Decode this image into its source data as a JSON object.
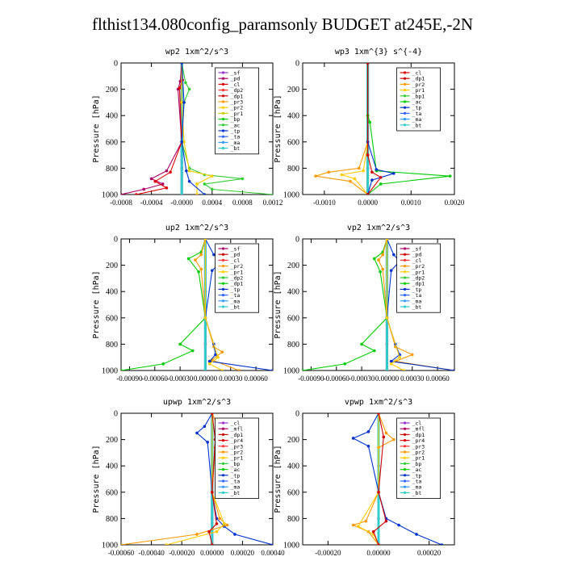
{
  "title": "flthist134.080config_paramsonly  BUDGET at245E,-2N",
  "chart_data": [
    {
      "type": "line",
      "title": "wp2   1xm^2/s^3",
      "ylabel": "Pressure [hPa]",
      "ylim": [
        1000,
        0
      ],
      "yticks": [
        0,
        200,
        400,
        600,
        800,
        1000
      ],
      "xlim": [
        -0.0008,
        0.0012
      ],
      "xticks": [
        -0.0008,
        -0.0004,
        0.0,
        0.0004,
        0.0008,
        0.0012
      ],
      "xticklabels": [
        "-0.0008",
        "-0.0004",
        "-0.0000",
        "0.0004",
        "0.0008",
        "0.0012"
      ],
      "legend": [
        "_sf",
        "_pd",
        "_cl",
        "_dp2",
        "_dp1",
        "_pr3",
        "_pr2",
        "_pr1",
        "_bp",
        "_ac",
        "_tp",
        "_ta",
        "_ma",
        "_bt"
      ],
      "colors": [
        "#9933cc",
        "#aa0066",
        "#dd0000",
        "#ff3333",
        "#cc0000",
        "#ff9900",
        "#ffcc00",
        "#cccc00",
        "#00cc00",
        "#33cc33",
        "#0033cc",
        "#3366ff",
        "#3399ff",
        "#33cccc"
      ],
      "series": [
        {
          "name": "_sf",
          "x": [
            0,
            0,
            0,
            0
          ],
          "y": [
            0,
            400,
            800,
            1000
          ]
        },
        {
          "name": "_bt",
          "x": [
            0,
            0,
            0
          ],
          "y": [
            0,
            500,
            1000
          ]
        },
        {
          "name": "_pd",
          "x": [
            0,
            -2e-05,
            -5e-05,
            0,
            -0.0002,
            -0.0004,
            -0.00025,
            -0.0005,
            -0.0008
          ],
          "y": [
            0,
            140,
            200,
            600,
            820,
            880,
            920,
            960,
            1000
          ]
        },
        {
          "name": "_cl",
          "x": [
            0,
            1e-05,
            -3e-05,
            0,
            -0.00015,
            -0.00035,
            -0.0002,
            -0.0006
          ],
          "y": [
            0,
            130,
            190,
            600,
            830,
            900,
            950,
            1000
          ]
        },
        {
          "name": "_ac",
          "x": [
            0,
            5e-05,
            0.0001,
            3e-05,
            0,
            0.0001,
            0.0003,
            0.0008,
            0.0003,
            0.0004,
            0.0012
          ],
          "y": [
            0,
            150,
            200,
            300,
            600,
            800,
            850,
            880,
            920,
            960,
            1000
          ]
        },
        {
          "name": "_pr2",
          "x": [
            0,
            0,
            3e-05,
            0.0001,
            0.0004,
            0.0002,
            0.0002
          ],
          "y": [
            0,
            300,
            600,
            820,
            860,
            920,
            1000
          ]
        },
        {
          "name": "_tp",
          "x": [
            0,
            3e-05,
            0,
            6e-05,
            0.0001,
            0.0003
          ],
          "y": [
            0,
            300,
            600,
            820,
            900,
            1000
          ]
        }
      ]
    },
    {
      "type": "line",
      "title": "wp3   1xm^{3} s^{-4}",
      "ylabel": "Pressure [hPa]",
      "ylim": [
        1000,
        0
      ],
      "yticks": [
        0,
        200,
        400,
        600,
        800,
        1000
      ],
      "xlim": [
        -0.0015,
        0.002
      ],
      "xticks": [
        -0.001,
        0.0,
        0.001,
        0.002
      ],
      "xticklabels": [
        "-0.0010",
        "0.0000",
        "0.0010",
        "0.0020"
      ],
      "legend": [
        "_cl",
        "_dp1",
        "_pr2",
        "_pr1",
        "_bp1",
        "_ac",
        "_tp",
        "_ta",
        "_ma",
        "_bt"
      ],
      "colors": [
        "#dd0000",
        "#cc0000",
        "#ff9900",
        "#ffcc00",
        "#33cc33",
        "#00cc00",
        "#0033cc",
        "#3366ff",
        "#3399ff",
        "#33cccc"
      ],
      "series": [
        {
          "name": "_cl",
          "x": [
            0,
            0,
            0,
            0
          ],
          "y": [
            0,
            400,
            800,
            1000
          ]
        },
        {
          "name": "_bt",
          "x": [
            0,
            0,
            0
          ],
          "y": [
            0,
            500,
            1000
          ]
        },
        {
          "name": "_pr2",
          "x": [
            0,
            0,
            -0.0002,
            -0.0009,
            -0.0012,
            -0.0004,
            0
          ],
          "y": [
            0,
            600,
            800,
            830,
            860,
            900,
            1000
          ]
        },
        {
          "name": "_pr1",
          "x": [
            0,
            0,
            -0.0001,
            -0.0006,
            -0.0003,
            0
          ],
          "y": [
            0,
            600,
            820,
            850,
            880,
            1000
          ]
        },
        {
          "name": "_ac",
          "x": [
            0,
            0,
            5e-05,
            0.0002,
            0.0019,
            0.0003,
            0
          ],
          "y": [
            0,
            400,
            450,
            820,
            860,
            920,
            1000
          ]
        },
        {
          "name": "_tp",
          "x": [
            0,
            0,
            0.0002,
            0.0006,
            0.0001,
            0
          ],
          "y": [
            0,
            600,
            810,
            840,
            890,
            1000
          ]
        },
        {
          "name": "_dp1",
          "x": [
            0,
            0,
            0.0001,
            0.0003,
            0
          ],
          "y": [
            0,
            700,
            830,
            870,
            1000
          ]
        }
      ]
    },
    {
      "type": "line",
      "title": "up2   1xm^2/s^3",
      "ylabel": "Pressure [hPa]",
      "ylim": [
        1000,
        0
      ],
      "yticks": [
        0,
        200,
        400,
        600,
        800,
        1000
      ],
      "xlim": [
        -0.001,
        0.0008
      ],
      "xticks": [
        -0.0009,
        -0.0006,
        -0.0003,
        0.0,
        0.0003,
        0.0006
      ],
      "xticklabels": [
        "-0.00090",
        "-0.00060",
        "-0.00030",
        "0.00000",
        "0.00030",
        "0.00060"
      ],
      "legend": [
        "_sf",
        "_pd",
        "_cl",
        "_pr2",
        "_pr1",
        "_dp2",
        "_dp1",
        "_tp",
        "_ta",
        "_ma",
        "_bt"
      ],
      "colors": [
        "#aa0066",
        "#cc0000",
        "#ff3333",
        "#ff9900",
        "#ffcc00",
        "#33cc33",
        "#00cc00",
        "#0033cc",
        "#3366ff",
        "#3399ff",
        "#33cccc"
      ],
      "series": [
        {
          "name": "_sf",
          "x": [
            0,
            0,
            0,
            0
          ],
          "y": [
            0,
            400,
            800,
            1000
          ]
        },
        {
          "name": "_bt",
          "x": [
            0,
            0,
            0
          ],
          "y": [
            0,
            500,
            1000
          ]
        },
        {
          "name": "_dp1",
          "x": [
            0,
            -5e-05,
            -0.0002,
            -8e-05,
            0,
            -0.0003,
            -0.00015,
            -0.0005,
            -0.001
          ],
          "y": [
            0,
            100,
            150,
            250,
            600,
            800,
            850,
            950,
            1000
          ]
        },
        {
          "name": "_pr2",
          "x": [
            0,
            -5e-05,
            -0.00012,
            -5e-05,
            0,
            0.0001,
            0.0002,
            8e-05,
            0.0004
          ],
          "y": [
            0,
            120,
            160,
            230,
            600,
            820,
            860,
            920,
            1000
          ]
        },
        {
          "name": "_tp",
          "x": [
            0,
            0.0001,
            0.0002,
            8e-05,
            0,
            0.0001,
            0.00012,
            5e-05,
            0.0008
          ],
          "y": [
            0,
            120,
            170,
            240,
            600,
            800,
            880,
            930,
            1000
          ]
        },
        {
          "name": "_pr1",
          "x": [
            0,
            0,
            0.00015,
            5e-05,
            0.0002
          ],
          "y": [
            0,
            600,
            900,
            950,
            1000
          ]
        }
      ]
    },
    {
      "type": "line",
      "title": "vp2   1xm^2/s^3",
      "ylabel": "Pressure [hPa]",
      "ylim": [
        1000,
        0
      ],
      "yticks": [
        0,
        200,
        400,
        600,
        800,
        1000
      ],
      "xlim": [
        -0.001,
        0.0008
      ],
      "xticks": [
        -0.0009,
        -0.0006,
        -0.0003,
        0.0,
        0.0003,
        0.0006
      ],
      "xticklabels": [
        "-0.00090",
        "-0.00060",
        "-0.00030",
        "0.00000",
        "0.00030",
        "0.00060"
      ],
      "legend": [
        "_sf",
        "_pd",
        "_cl",
        "_pr2",
        "_pr1",
        "_dp2",
        "_dp1",
        "_tp",
        "_ta",
        "_ma",
        "_bt"
      ],
      "colors": [
        "#aa0066",
        "#cc0000",
        "#ff3333",
        "#ff9900",
        "#ffcc00",
        "#33cc33",
        "#00cc00",
        "#0033cc",
        "#3366ff",
        "#3399ff",
        "#33cccc"
      ],
      "series": [
        {
          "name": "_sf",
          "x": [
            0,
            0,
            0,
            0
          ],
          "y": [
            0,
            400,
            800,
            1000
          ]
        },
        {
          "name": "_bt",
          "x": [
            0,
            0,
            0
          ],
          "y": [
            0,
            500,
            1000
          ]
        },
        {
          "name": "_dp1",
          "x": [
            0,
            -5e-05,
            -0.00015,
            -8e-05,
            0,
            -0.0003,
            -0.00015,
            -0.0005,
            -0.001
          ],
          "y": [
            0,
            100,
            150,
            250,
            600,
            800,
            850,
            950,
            1000
          ]
        },
        {
          "name": "_pr2",
          "x": [
            0,
            -5e-05,
            -0.0001,
            -5e-05,
            0,
            0.0001,
            0.0003,
            0.0001,
            0.0008
          ],
          "y": [
            0,
            120,
            160,
            230,
            600,
            820,
            880,
            930,
            1000
          ]
        },
        {
          "name": "_tp",
          "x": [
            0,
            8e-05,
            0.00015,
            5e-05,
            0,
            0.0001,
            0.00015,
            5e-05,
            0.0008
          ],
          "y": [
            0,
            120,
            170,
            240,
            600,
            800,
            880,
            930,
            1000
          ]
        },
        {
          "name": "_pr1",
          "x": [
            0,
            0,
            0.00015,
            5e-05,
            0.0002
          ],
          "y": [
            0,
            600,
            900,
            950,
            1000
          ]
        }
      ]
    },
    {
      "type": "line",
      "title": "upwp   1xm^2/s^3",
      "ylabel": "Pressure [hPa]",
      "ylim": [
        1000,
        0
      ],
      "yticks": [
        0,
        200,
        400,
        600,
        800,
        1000
      ],
      "xlim": [
        -0.0006,
        0.0004
      ],
      "xticks": [
        -0.0006,
        -0.0004,
        -0.0002,
        0.0,
        0.0002,
        0.0004
      ],
      "xticklabels": [
        "-0.00060",
        "-0.00040",
        "-0.00020",
        "0.00000",
        "0.00020",
        "0.00040"
      ],
      "legend": [
        "_cl",
        "_mfl",
        "_dp1",
        "_pr4",
        "_pr3",
        "_pr2",
        "_pr1",
        "_bp",
        "_ac",
        "_tp",
        "_ta",
        "_ma",
        "_bt"
      ],
      "colors": [
        "#9933cc",
        "#aa0066",
        "#cc0000",
        "#dd0000",
        "#ff3333",
        "#ff9900",
        "#ffcc00",
        "#33cc33",
        "#00cc00",
        "#0033cc",
        "#3366ff",
        "#3399ff",
        "#33cccc"
      ],
      "series": [
        {
          "name": "_cl",
          "x": [
            0,
            0,
            0,
            0
          ],
          "y": [
            0,
            400,
            800,
            1000
          ]
        },
        {
          "name": "_bt",
          "x": [
            0,
            0,
            0
          ],
          "y": [
            0,
            500,
            1000
          ]
        },
        {
          "name": "_tp",
          "x": [
            0,
            -5e-05,
            -0.0001,
            -3e-05,
            0,
            3e-05,
            8e-05,
            0.00015,
            0.0004
          ],
          "y": [
            0,
            100,
            150,
            220,
            600,
            800,
            860,
            920,
            1000
          ]
        },
        {
          "name": "_pr2",
          "x": [
            0,
            5e-05,
            0.0001,
            2e-05,
            0,
            5e-05,
            0.0001,
            -0.0001,
            -0.0006
          ],
          "y": [
            0,
            130,
            180,
            260,
            600,
            800,
            850,
            920,
            1000
          ]
        },
        {
          "name": "_pr1",
          "x": [
            0,
            0,
            8e-05,
            3e-05,
            -0.0003
          ],
          "y": [
            0,
            600,
            840,
            900,
            1000
          ]
        },
        {
          "name": "_dp1",
          "x": [
            0,
            2e-05,
            0,
            3e-05,
            -2e-05,
            0
          ],
          "y": [
            0,
            200,
            600,
            840,
            900,
            1000
          ]
        }
      ]
    },
    {
      "type": "line",
      "title": "vpwp   1xm^2/s^3",
      "ylabel": "Pressure [hPa]",
      "ylim": [
        1000,
        0
      ],
      "yticks": [
        0,
        200,
        400,
        600,
        800,
        1000
      ],
      "xlim": [
        -0.0003,
        0.0003
      ],
      "xticks": [
        -0.0002,
        0.0,
        0.0002
      ],
      "xticklabels": [
        "-0.00020",
        "0.00000",
        "0.00020"
      ],
      "legend": [
        "_cl",
        "_mfl",
        "_dp1",
        "_pr4",
        "_pr3",
        "_pr2",
        "_pr1",
        "_bp",
        "_ac",
        "_tp",
        "_ta",
        "_ma",
        "_bt"
      ],
      "colors": [
        "#9933cc",
        "#aa0066",
        "#cc0000",
        "#dd0000",
        "#ff3333",
        "#ff9900",
        "#ffcc00",
        "#33cc33",
        "#00cc00",
        "#0033cc",
        "#3366ff",
        "#3399ff",
        "#33cccc"
      ],
      "series": [
        {
          "name": "_cl",
          "x": [
            0,
            0,
            0,
            0
          ],
          "y": [
            0,
            400,
            800,
            1000
          ]
        },
        {
          "name": "_bt",
          "x": [
            0,
            0,
            0
          ],
          "y": [
            0,
            500,
            1000
          ]
        },
        {
          "name": "_tp",
          "x": [
            0,
            -4e-05,
            -0.0001,
            -4e-05,
            0,
            3e-05,
            8e-05,
            0.00015,
            0.00025
          ],
          "y": [
            0,
            140,
            190,
            250,
            600,
            800,
            850,
            920,
            1000
          ]
        },
        {
          "name": "_pr2",
          "x": [
            0,
            3e-05,
            6e-05,
            0,
            0,
            -5e-05,
            -0.0001,
            -4e-05,
            0
          ],
          "y": [
            0,
            150,
            200,
            260,
            600,
            820,
            850,
            900,
            1000
          ]
        },
        {
          "name": "_pr1",
          "x": [
            0,
            0,
            -8e-05,
            -2e-05,
            0
          ],
          "y": [
            0,
            600,
            860,
            920,
            1000
          ]
        },
        {
          "name": "_dp1",
          "x": [
            0,
            2e-05,
            0,
            3e-05,
            -2e-05,
            0
          ],
          "y": [
            0,
            180,
            600,
            820,
            900,
            1000
          ]
        }
      ]
    }
  ]
}
